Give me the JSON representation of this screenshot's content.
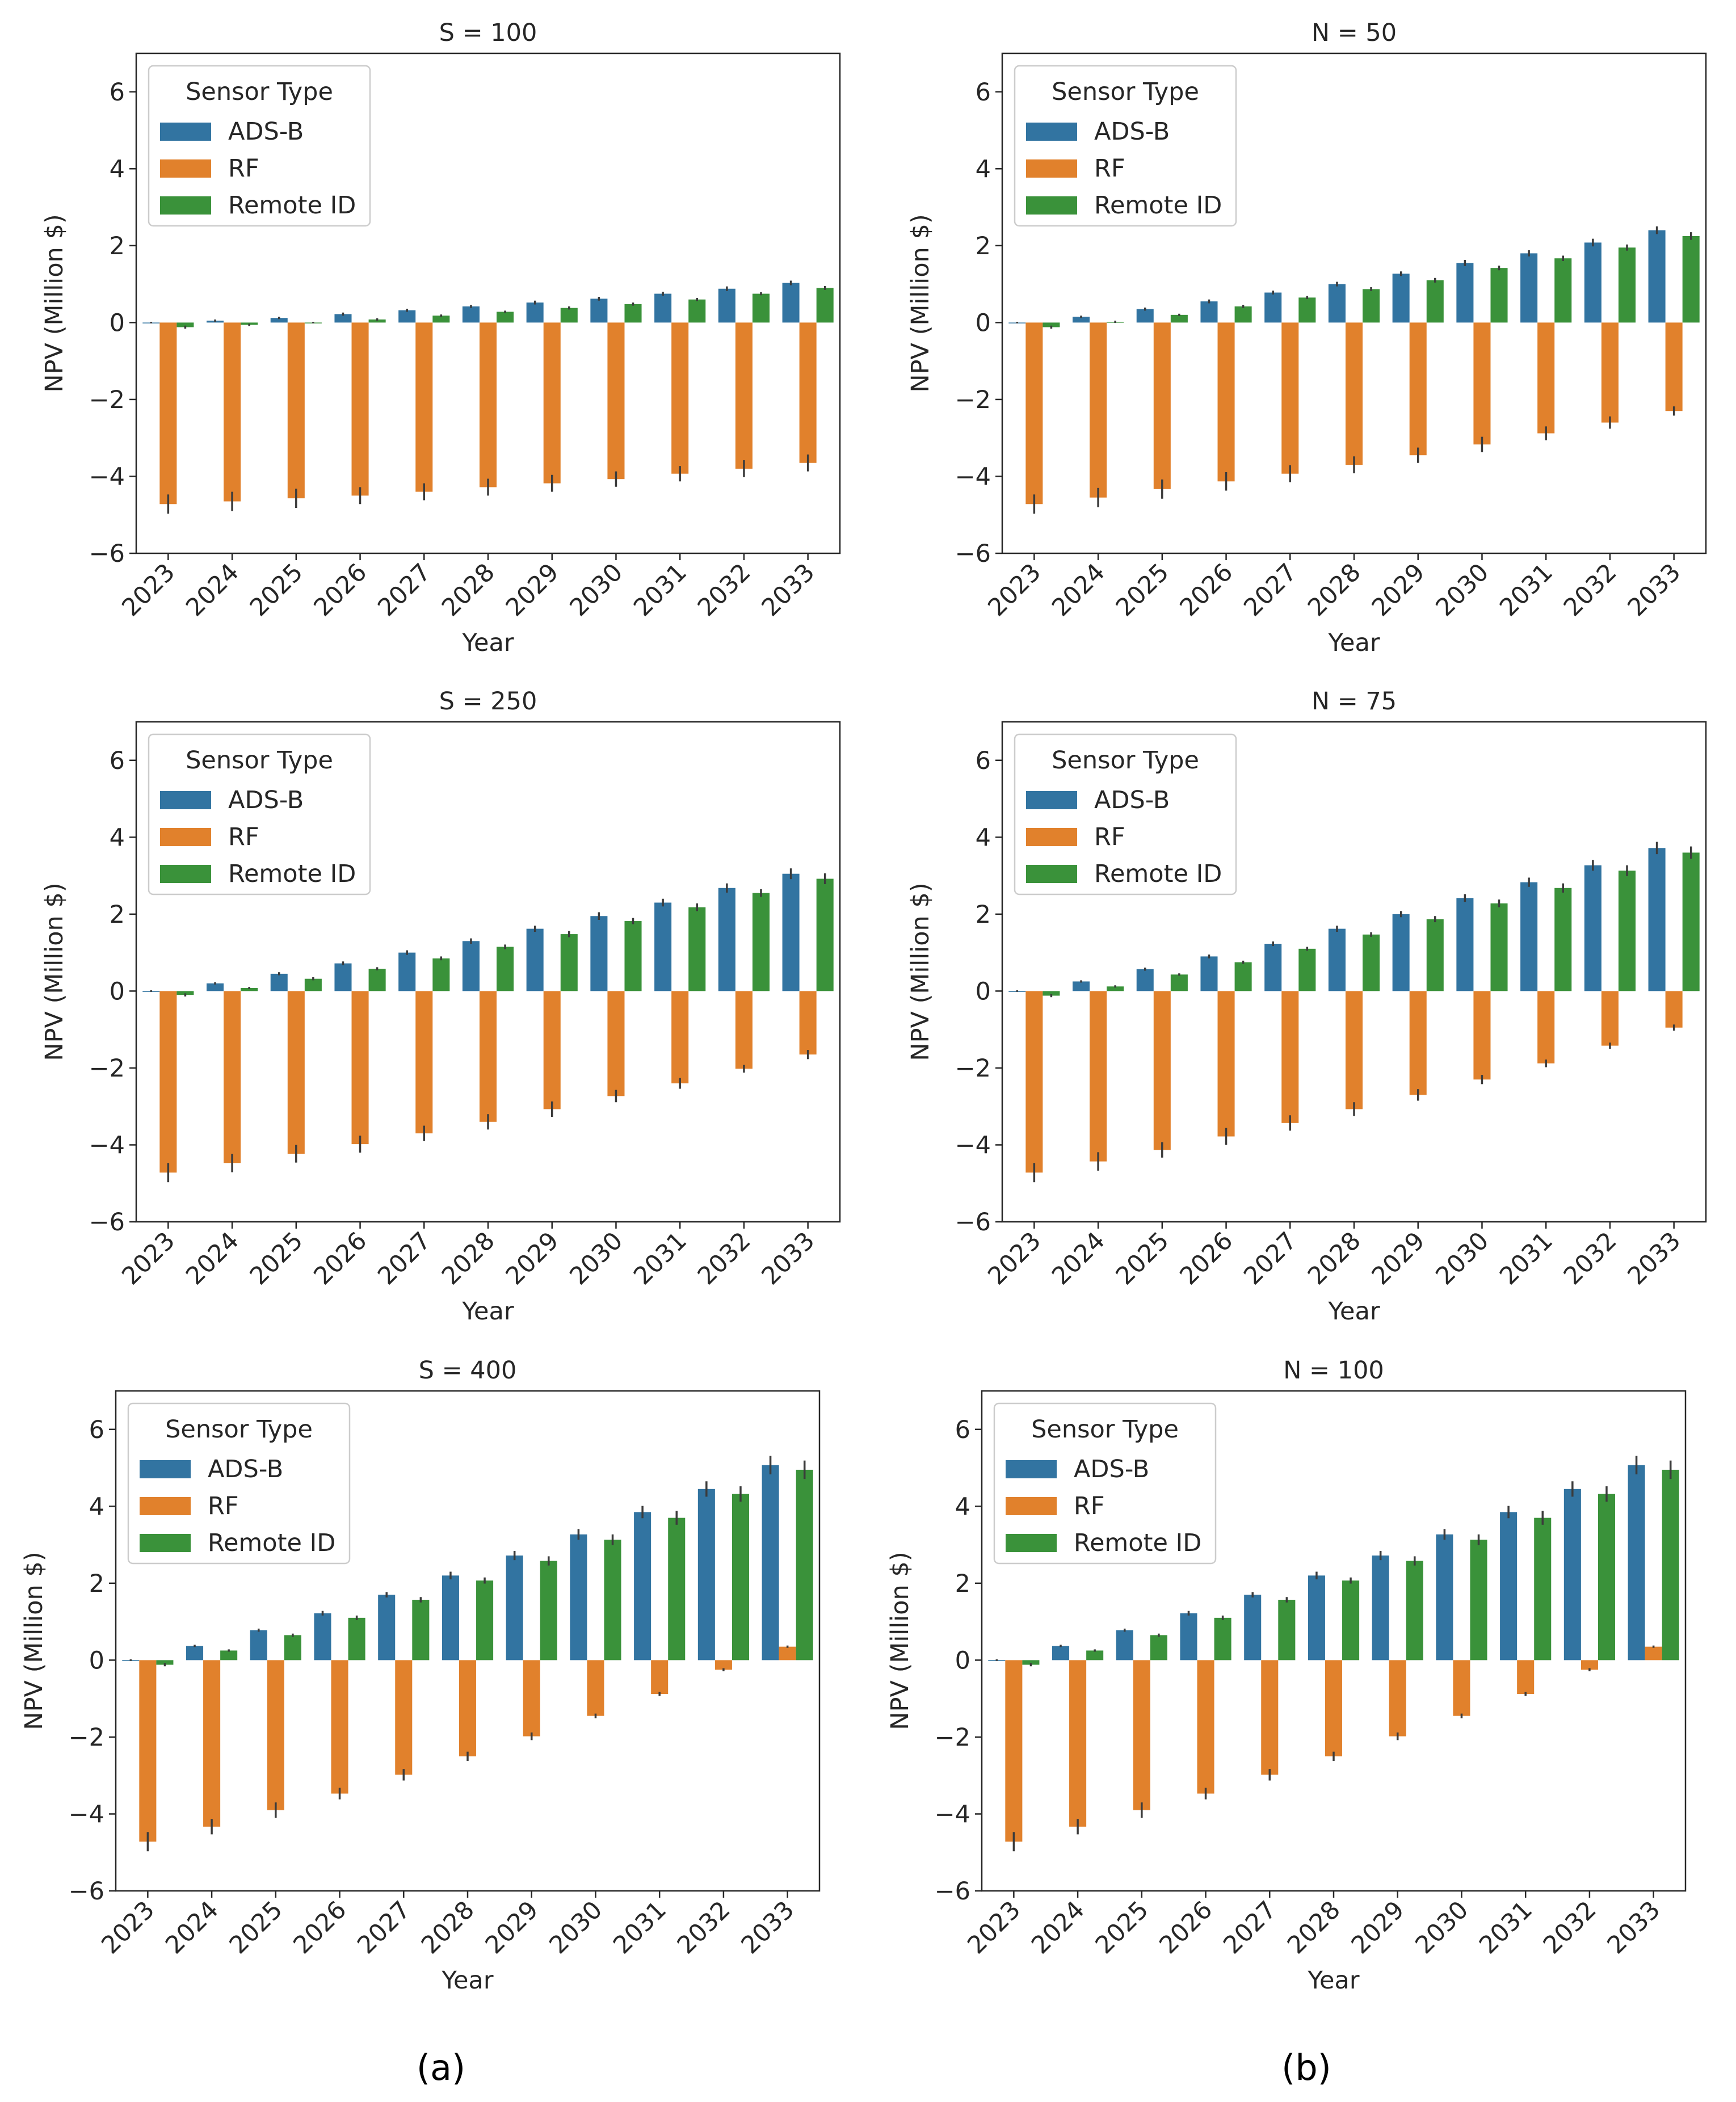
{
  "chart_data": [
    {
      "type": "bar",
      "title": "S = 100",
      "xlabel": "Year",
      "ylabel": "NPV (Million $)",
      "ylim": [
        -6,
        7
      ],
      "yticks": [
        -6,
        -4,
        -2,
        0,
        2,
        4,
        6
      ],
      "legend_title": "Sensor Type",
      "legend_position": "top-left",
      "categories": [
        "2023",
        "2024",
        "2025",
        "2026",
        "2027",
        "2028",
        "2029",
        "2030",
        "2031",
        "2032",
        "2033"
      ],
      "series": [
        {
          "name": "ADS-B",
          "color": "#3274a1",
          "values": [
            0.0,
            0.05,
            0.12,
            0.22,
            0.32,
            0.42,
            0.52,
            0.62,
            0.75,
            0.88,
            1.03
          ],
          "errors": [
            0.02,
            0.03,
            0.03,
            0.04,
            0.04,
            0.04,
            0.05,
            0.05,
            0.05,
            0.06,
            0.06
          ]
        },
        {
          "name": "RF",
          "color": "#e1812c",
          "values": [
            -4.72,
            -4.65,
            -4.57,
            -4.5,
            -4.4,
            -4.28,
            -4.18,
            -4.07,
            -3.93,
            -3.8,
            -3.65
          ],
          "errors": [
            0.25,
            0.25,
            0.25,
            0.22,
            0.22,
            0.22,
            0.22,
            0.2,
            0.2,
            0.22,
            0.22
          ]
        },
        {
          "name": "Remote ID",
          "color": "#3a923a",
          "values": [
            -0.12,
            -0.06,
            0.0,
            0.08,
            0.18,
            0.28,
            0.38,
            0.48,
            0.6,
            0.75,
            0.9
          ],
          "errors": [
            0.04,
            0.03,
            0.02,
            0.03,
            0.03,
            0.03,
            0.04,
            0.04,
            0.04,
            0.04,
            0.05
          ]
        }
      ]
    },
    {
      "type": "bar",
      "title": "N = 50",
      "xlabel": "Year",
      "ylabel": "NPV (Million $)",
      "ylim": [
        -6,
        7
      ],
      "yticks": [
        -6,
        -4,
        -2,
        0,
        2,
        4,
        6
      ],
      "legend_title": "Sensor Type",
      "legend_position": "top-left",
      "categories": [
        "2023",
        "2024",
        "2025",
        "2026",
        "2027",
        "2028",
        "2029",
        "2030",
        "2031",
        "2032",
        "2033"
      ],
      "series": [
        {
          "name": "ADS-B",
          "color": "#3274a1",
          "values": [
            0.0,
            0.15,
            0.35,
            0.55,
            0.78,
            1.0,
            1.27,
            1.55,
            1.8,
            2.08,
            2.4
          ],
          "errors": [
            0.02,
            0.03,
            0.04,
            0.05,
            0.05,
            0.06,
            0.06,
            0.08,
            0.08,
            0.1,
            0.1
          ]
        },
        {
          "name": "RF",
          "color": "#e1812c",
          "values": [
            -4.72,
            -4.55,
            -4.33,
            -4.13,
            -3.93,
            -3.7,
            -3.45,
            -3.17,
            -2.88,
            -2.6,
            -2.3
          ],
          "errors": [
            0.25,
            0.25,
            0.25,
            0.24,
            0.22,
            0.22,
            0.2,
            0.2,
            0.18,
            0.16,
            0.12
          ]
        },
        {
          "name": "Remote ID",
          "color": "#3a923a",
          "values": [
            -0.12,
            0.02,
            0.2,
            0.42,
            0.65,
            0.87,
            1.1,
            1.42,
            1.67,
            1.95,
            2.25
          ],
          "errors": [
            0.04,
            0.03,
            0.03,
            0.04,
            0.04,
            0.05,
            0.06,
            0.06,
            0.07,
            0.08,
            0.1
          ]
        }
      ]
    },
    {
      "type": "bar",
      "title": "S = 250",
      "xlabel": "Year",
      "ylabel": "NPV (Million $)",
      "ylim": [
        -6,
        7
      ],
      "yticks": [
        -6,
        -4,
        -2,
        0,
        2,
        4,
        6
      ],
      "legend_title": "Sensor Type",
      "legend_position": "top-left",
      "categories": [
        "2023",
        "2024",
        "2025",
        "2026",
        "2027",
        "2028",
        "2029",
        "2030",
        "2031",
        "2032",
        "2033"
      ],
      "series": [
        {
          "name": "ADS-B",
          "color": "#3274a1",
          "values": [
            0.0,
            0.2,
            0.45,
            0.72,
            1.0,
            1.3,
            1.62,
            1.95,
            2.3,
            2.68,
            3.05
          ],
          "errors": [
            0.02,
            0.03,
            0.04,
            0.05,
            0.06,
            0.07,
            0.08,
            0.1,
            0.1,
            0.12,
            0.14
          ]
        },
        {
          "name": "RF",
          "color": "#e1812c",
          "values": [
            -4.72,
            -4.47,
            -4.23,
            -3.98,
            -3.7,
            -3.4,
            -3.07,
            -2.73,
            -2.4,
            -2.02,
            -1.65
          ],
          "errors": [
            0.25,
            0.24,
            0.23,
            0.22,
            0.2,
            0.2,
            0.2,
            0.16,
            0.14,
            0.1,
            0.12
          ]
        },
        {
          "name": "Remote ID",
          "color": "#3a923a",
          "values": [
            -0.1,
            0.08,
            0.32,
            0.58,
            0.85,
            1.15,
            1.48,
            1.82,
            2.18,
            2.55,
            2.92
          ],
          "errors": [
            0.04,
            0.03,
            0.04,
            0.04,
            0.05,
            0.06,
            0.08,
            0.08,
            0.1,
            0.1,
            0.14
          ]
        }
      ]
    },
    {
      "type": "bar",
      "title": "N = 75",
      "xlabel": "Year",
      "ylabel": "NPV (Million $)",
      "ylim": [
        -6,
        7
      ],
      "yticks": [
        -6,
        -4,
        -2,
        0,
        2,
        4,
        6
      ],
      "legend_title": "Sensor Type",
      "legend_position": "top-left",
      "categories": [
        "2023",
        "2024",
        "2025",
        "2026",
        "2027",
        "2028",
        "2029",
        "2030",
        "2031",
        "2032",
        "2033"
      ],
      "series": [
        {
          "name": "ADS-B",
          "color": "#3274a1",
          "values": [
            0.0,
            0.25,
            0.57,
            0.9,
            1.23,
            1.62,
            2.0,
            2.42,
            2.83,
            3.27,
            3.72
          ],
          "errors": [
            0.02,
            0.03,
            0.04,
            0.05,
            0.06,
            0.08,
            0.08,
            0.1,
            0.12,
            0.14,
            0.16
          ]
        },
        {
          "name": "RF",
          "color": "#e1812c",
          "values": [
            -4.72,
            -4.43,
            -4.13,
            -3.78,
            -3.43,
            -3.07,
            -2.7,
            -2.3,
            -1.88,
            -1.42,
            -0.95
          ],
          "errors": [
            0.25,
            0.24,
            0.2,
            0.22,
            0.2,
            0.18,
            0.15,
            0.12,
            0.1,
            0.08,
            0.08
          ]
        },
        {
          "name": "Remote ID",
          "color": "#3a923a",
          "values": [
            -0.12,
            0.12,
            0.43,
            0.75,
            1.1,
            1.47,
            1.87,
            2.28,
            2.68,
            3.13,
            3.6
          ],
          "errors": [
            0.04,
            0.03,
            0.03,
            0.04,
            0.05,
            0.06,
            0.08,
            0.1,
            0.12,
            0.14,
            0.16
          ]
        }
      ]
    },
    {
      "type": "bar",
      "title": "S = 400",
      "xlabel": "Year",
      "ylabel": "NPV (Million $)",
      "ylim": [
        -6,
        7
      ],
      "yticks": [
        -6,
        -4,
        -2,
        0,
        2,
        4,
        6
      ],
      "legend_title": "Sensor Type",
      "legend_position": "top-left",
      "categories": [
        "2023",
        "2024",
        "2025",
        "2026",
        "2027",
        "2028",
        "2029",
        "2030",
        "2031",
        "2032",
        "2033"
      ],
      "series": [
        {
          "name": "ADS-B",
          "color": "#3274a1",
          "values": [
            0.0,
            0.37,
            0.78,
            1.22,
            1.7,
            2.2,
            2.72,
            3.27,
            3.85,
            4.45,
            5.07
          ],
          "errors": [
            0.02,
            0.03,
            0.04,
            0.06,
            0.07,
            0.1,
            0.12,
            0.14,
            0.16,
            0.2,
            0.24
          ]
        },
        {
          "name": "RF",
          "color": "#e1812c",
          "values": [
            -4.72,
            -4.33,
            -3.9,
            -3.47,
            -2.98,
            -2.5,
            -1.98,
            -1.45,
            -0.88,
            -0.25,
            0.35
          ],
          "errors": [
            0.25,
            0.2,
            0.2,
            0.15,
            0.15,
            0.12,
            0.1,
            0.06,
            0.05,
            0.04,
            0.03
          ]
        },
        {
          "name": "Remote ID",
          "color": "#3a923a",
          "values": [
            -0.12,
            0.25,
            0.65,
            1.1,
            1.57,
            2.07,
            2.58,
            3.13,
            3.7,
            4.32,
            4.95
          ],
          "errors": [
            0.04,
            0.03,
            0.04,
            0.06,
            0.07,
            0.08,
            0.12,
            0.14,
            0.18,
            0.2,
            0.24
          ]
        }
      ]
    },
    {
      "type": "bar",
      "title": "N = 100",
      "xlabel": "Year",
      "ylabel": "NPV (Million $)",
      "ylim": [
        -6,
        7
      ],
      "yticks": [
        -6,
        -4,
        -2,
        0,
        2,
        4,
        6
      ],
      "legend_title": "Sensor Type",
      "legend_position": "top-left",
      "categories": [
        "2023",
        "2024",
        "2025",
        "2026",
        "2027",
        "2028",
        "2029",
        "2030",
        "2031",
        "2032",
        "2033"
      ],
      "series": [
        {
          "name": "ADS-B",
          "color": "#3274a1",
          "values": [
            0.0,
            0.37,
            0.78,
            1.22,
            1.7,
            2.2,
            2.72,
            3.27,
            3.85,
            4.45,
            5.07
          ],
          "errors": [
            0.02,
            0.03,
            0.04,
            0.06,
            0.07,
            0.1,
            0.12,
            0.14,
            0.16,
            0.2,
            0.24
          ]
        },
        {
          "name": "RF",
          "color": "#e1812c",
          "values": [
            -4.72,
            -4.33,
            -3.9,
            -3.47,
            -2.98,
            -2.5,
            -1.98,
            -1.45,
            -0.88,
            -0.25,
            0.35
          ],
          "errors": [
            0.25,
            0.2,
            0.2,
            0.15,
            0.15,
            0.12,
            0.1,
            0.06,
            0.05,
            0.04,
            0.03
          ]
        },
        {
          "name": "Remote ID",
          "color": "#3a923a",
          "values": [
            -0.12,
            0.25,
            0.65,
            1.1,
            1.57,
            2.07,
            2.58,
            3.13,
            3.7,
            4.32,
            4.95
          ],
          "errors": [
            0.04,
            0.03,
            0.04,
            0.06,
            0.07,
            0.08,
            0.12,
            0.14,
            0.18,
            0.2,
            0.24
          ]
        }
      ]
    }
  ],
  "captions": {
    "left": "(a)",
    "right": "(b)"
  }
}
